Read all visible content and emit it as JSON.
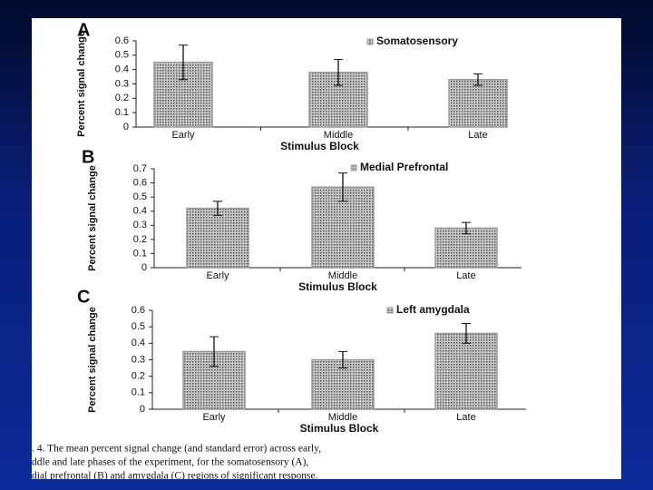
{
  "chart_data": [
    {
      "type": "bar",
      "panel": "A",
      "x_label": "Stimulus Block",
      "y_label": "Percent signal change",
      "categories": [
        "Early",
        "Middle",
        "Late"
      ],
      "series": [
        {
          "name": "Somatosensory",
          "color": "#9a9a9a",
          "values": [
            0.45,
            0.38,
            0.33
          ],
          "errors": [
            0.12,
            0.09,
            0.04
          ]
        }
      ],
      "ylim": [
        0,
        0.6
      ],
      "yticks": [
        0,
        0.1,
        0.2,
        0.3,
        0.4,
        0.5,
        0.6
      ]
    },
    {
      "type": "bar",
      "panel": "B",
      "x_label": "Stimulus Block",
      "y_label": "Percent signal change",
      "categories": [
        "Early",
        "Middle",
        "Late"
      ],
      "series": [
        {
          "name": "Medial Prefrontal",
          "color": "#9a9a9a",
          "values": [
            0.42,
            0.57,
            0.28
          ],
          "errors": [
            0.05,
            0.1,
            0.04
          ]
        }
      ],
      "ylim": [
        0,
        0.7
      ],
      "yticks": [
        0,
        0.1,
        0.2,
        0.3,
        0.4,
        0.5,
        0.6,
        0.7
      ]
    },
    {
      "type": "bar",
      "panel": "C",
      "x_label": "Stimulus Block",
      "y_label": "Percent signal change",
      "categories": [
        "Early",
        "Middle",
        "Late"
      ],
      "series": [
        {
          "name": "Left amygdala",
          "color": "#9a9a9a",
          "values": [
            0.35,
            0.3,
            0.46
          ],
          "errors": [
            0.09,
            0.05,
            0.06
          ]
        }
      ],
      "ylim": [
        0,
        0.6
      ],
      "yticks": [
        0,
        0.1,
        0.2,
        0.3,
        0.4,
        0.5,
        0.6
      ]
    }
  ],
  "caption": {
    "lines": [
      ". 4. The mean percent signal change (and standard error) across early,",
      "ddle and late phases of the experiment, for the somatosensory (A),",
      "dial prefrontal (B) and amygdala (C) regions of significant response."
    ]
  }
}
